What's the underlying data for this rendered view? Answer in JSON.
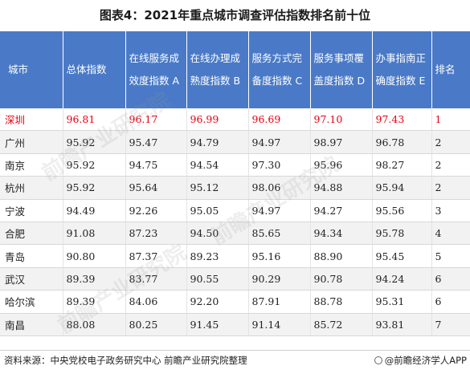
{
  "title": "图表4：2021年重点城市调查评估指数排名前十位",
  "table": {
    "headers": [
      "城市",
      "总体指数",
      "在线服务成效度指数 A",
      "在线办理成熟度指数 B",
      "服务方式完备度指数 C",
      "服务事项覆盖度指数 D",
      "办事指南正确度指数 E",
      "排名"
    ],
    "rows": [
      [
        "深圳",
        "96.81",
        "96.17",
        "96.99",
        "96.69",
        "97.10",
        "97.43",
        "1"
      ],
      [
        "广州",
        "95.92",
        "95.47",
        "94.79",
        "94.97",
        "98.97",
        "96.78",
        "2"
      ],
      [
        "南京",
        "95.92",
        "94.75",
        "94.54",
        "97.30",
        "95.96",
        "98.27",
        "2"
      ],
      [
        "杭州",
        "95.92",
        "95.64",
        "95.12",
        "98.06",
        "94.88",
        "95.94",
        "2"
      ],
      [
        "宁波",
        "94.49",
        "92.26",
        "95.05",
        "94.97",
        "94.27",
        "95.56",
        "3"
      ],
      [
        "合肥",
        "91.08",
        "87.23",
        "94.50",
        "85.65",
        "94.34",
        "95.78",
        "4"
      ],
      [
        "青岛",
        "90.80",
        "87.37",
        "89.23",
        "95.16",
        "88.90",
        "95.45",
        "5"
      ],
      [
        "武汉",
        "89.39",
        "83.77",
        "90.55",
        "90.29",
        "90.78",
        "94.24",
        "6"
      ],
      [
        "哈尔滨",
        "89.39",
        "84.06",
        "92.20",
        "87.91",
        "88.78",
        "95.31",
        "6"
      ],
      [
        "南昌",
        "88.08",
        "80.25",
        "91.45",
        "91.14",
        "85.72",
        "93.81",
        "7"
      ]
    ],
    "highlight_row": 0,
    "highlight_color": "#e60012",
    "header_bg": "#4a7ac7"
  },
  "footer": {
    "source": "资料来源：中央党校电子政务研究中心 前瞻产业研究院整理",
    "brand": "@前瞻经济学人APP"
  },
  "watermark": "前瞻产业研究院"
}
